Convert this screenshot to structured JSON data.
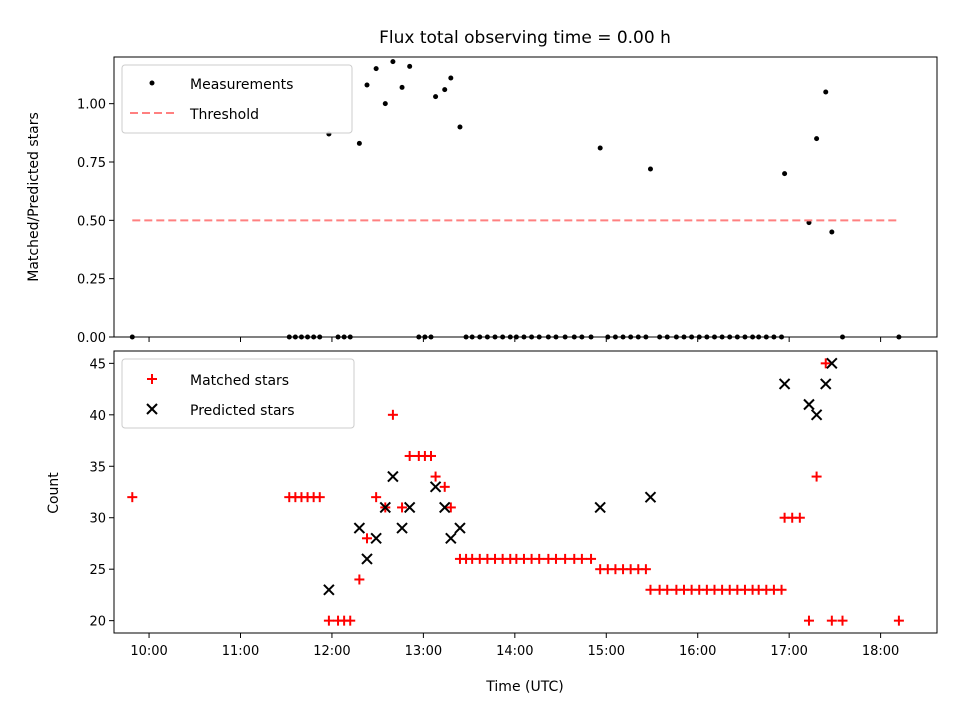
{
  "chart_data": [
    {
      "type": "scatter",
      "title": "Flux total observing time = 0.00 h",
      "xlabel": "",
      "ylabel": "Matched/Predicted stars",
      "xlim": [
        "09:37",
        "18:37"
      ],
      "ylim": [
        0,
        1.2
      ],
      "yticks": [
        "0.00",
        "0.25",
        "0.50",
        "0.75",
        "1.00"
      ],
      "grid": false,
      "legend": "top-left",
      "series": [
        {
          "name": "Measurements",
          "marker": "dot",
          "color": "#000000",
          "points": [
            [
              "09:49",
              0
            ],
            [
              "11:32",
              0
            ],
            [
              "11:36",
              0
            ],
            [
              "11:40",
              0
            ],
            [
              "11:44",
              0
            ],
            [
              "11:48",
              0
            ],
            [
              "11:52",
              0
            ],
            [
              "11:58",
              0.87
            ],
            [
              "12:04",
              0
            ],
            [
              "12:08",
              0
            ],
            [
              "12:12",
              0
            ],
            [
              "12:18",
              0.83
            ],
            [
              "12:23",
              1.08
            ],
            [
              "12:29",
              1.15
            ],
            [
              "12:35",
              1.0
            ],
            [
              "12:40",
              1.18
            ],
            [
              "12:46",
              1.07
            ],
            [
              "12:51",
              1.16
            ],
            [
              "12:57",
              0
            ],
            [
              "13:01",
              0
            ],
            [
              "13:05",
              0
            ],
            [
              "13:08",
              1.03
            ],
            [
              "13:14",
              1.06
            ],
            [
              "13:18",
              1.11
            ],
            [
              "13:24",
              0.9
            ],
            [
              "13:28",
              0
            ],
            [
              "13:32",
              0
            ],
            [
              "13:37",
              0
            ],
            [
              "13:42",
              0
            ],
            [
              "13:47",
              0
            ],
            [
              "13:52",
              0
            ],
            [
              "13:57",
              0
            ],
            [
              "14:01",
              0
            ],
            [
              "14:06",
              0
            ],
            [
              "14:11",
              0
            ],
            [
              "14:16",
              0
            ],
            [
              "14:22",
              0
            ],
            [
              "14:27",
              0
            ],
            [
              "14:33",
              0
            ],
            [
              "14:39",
              0
            ],
            [
              "14:44",
              0
            ],
            [
              "14:50",
              0
            ],
            [
              "14:56",
              0.81
            ],
            [
              "15:01",
              0
            ],
            [
              "15:06",
              0
            ],
            [
              "15:11",
              0
            ],
            [
              "15:16",
              0
            ],
            [
              "15:21",
              0
            ],
            [
              "15:26",
              0
            ],
            [
              "15:29",
              0.72
            ],
            [
              "15:35",
              0
            ],
            [
              "15:40",
              0
            ],
            [
              "15:46",
              0
            ],
            [
              "15:51",
              0
            ],
            [
              "15:56",
              0
            ],
            [
              "16:01",
              0
            ],
            [
              "16:06",
              0
            ],
            [
              "16:11",
              0
            ],
            [
              "16:16",
              0
            ],
            [
              "16:21",
              0
            ],
            [
              "16:26",
              0
            ],
            [
              "16:31",
              0
            ],
            [
              "16:36",
              0
            ],
            [
              "16:40",
              0
            ],
            [
              "16:45",
              0
            ],
            [
              "16:50",
              0
            ],
            [
              "16:55",
              0
            ],
            [
              "16:57",
              0.7
            ],
            [
              "17:13",
              0.49
            ],
            [
              "17:18",
              0.85
            ],
            [
              "17:24",
              1.05
            ],
            [
              "17:28",
              0.45
            ],
            [
              "17:35",
              0
            ],
            [
              "18:12",
              0
            ]
          ]
        },
        {
          "name": "Threshold",
          "marker": "dashed-line",
          "color": "#ff8080",
          "points": [
            [
              "09:49",
              0.5
            ],
            [
              "18:12",
              0.5
            ]
          ]
        }
      ]
    },
    {
      "type": "scatter",
      "title": "",
      "xlabel": "Time (UTC)",
      "ylabel": "Count",
      "xlim": [
        "09:37",
        "18:37"
      ],
      "ylim": [
        18.8,
        46.2
      ],
      "xticks": [
        "10:00",
        "11:00",
        "12:00",
        "13:00",
        "14:00",
        "15:00",
        "16:00",
        "17:00",
        "18:00"
      ],
      "yticks": [
        "20",
        "25",
        "30",
        "35",
        "40",
        "45"
      ],
      "grid": false,
      "legend": "top-left",
      "series": [
        {
          "name": "Matched stars",
          "marker": "plus",
          "color": "#ff0000",
          "points": [
            [
              "09:49",
              32
            ],
            [
              "11:32",
              32
            ],
            [
              "11:36",
              32
            ],
            [
              "11:40",
              32
            ],
            [
              "11:44",
              32
            ],
            [
              "11:48",
              32
            ],
            [
              "11:52",
              32
            ],
            [
              "11:58",
              20
            ],
            [
              "12:04",
              20
            ],
            [
              "12:08",
              20
            ],
            [
              "12:12",
              20
            ],
            [
              "12:18",
              24
            ],
            [
              "12:23",
              28
            ],
            [
              "12:29",
              32
            ],
            [
              "12:35",
              31
            ],
            [
              "12:40",
              40
            ],
            [
              "12:46",
              31
            ],
            [
              "12:51",
              36
            ],
            [
              "12:57",
              36
            ],
            [
              "13:01",
              36
            ],
            [
              "13:05",
              36
            ],
            [
              "13:08",
              34
            ],
            [
              "13:14",
              33
            ],
            [
              "13:18",
              31
            ],
            [
              "13:24",
              26
            ],
            [
              "13:28",
              26
            ],
            [
              "13:32",
              26
            ],
            [
              "13:37",
              26
            ],
            [
              "13:42",
              26
            ],
            [
              "13:47",
              26
            ],
            [
              "13:52",
              26
            ],
            [
              "13:57",
              26
            ],
            [
              "14:01",
              26
            ],
            [
              "14:06",
              26
            ],
            [
              "14:11",
              26
            ],
            [
              "14:16",
              26
            ],
            [
              "14:22",
              26
            ],
            [
              "14:27",
              26
            ],
            [
              "14:33",
              26
            ],
            [
              "14:39",
              26
            ],
            [
              "14:44",
              26
            ],
            [
              "14:50",
              26
            ],
            [
              "14:56",
              25
            ],
            [
              "15:01",
              25
            ],
            [
              "15:06",
              25
            ],
            [
              "15:11",
              25
            ],
            [
              "15:16",
              25
            ],
            [
              "15:21",
              25
            ],
            [
              "15:26",
              25
            ],
            [
              "15:29",
              23
            ],
            [
              "15:35",
              23
            ],
            [
              "15:40",
              23
            ],
            [
              "15:46",
              23
            ],
            [
              "15:51",
              23
            ],
            [
              "15:56",
              23
            ],
            [
              "16:01",
              23
            ],
            [
              "16:06",
              23
            ],
            [
              "16:11",
              23
            ],
            [
              "16:16",
              23
            ],
            [
              "16:21",
              23
            ],
            [
              "16:26",
              23
            ],
            [
              "16:31",
              23
            ],
            [
              "16:36",
              23
            ],
            [
              "16:40",
              23
            ],
            [
              "16:45",
              23
            ],
            [
              "16:50",
              23
            ],
            [
              "16:55",
              23
            ],
            [
              "16:57",
              30
            ],
            [
              "17:02",
              30
            ],
            [
              "17:07",
              30
            ],
            [
              "17:13",
              20
            ],
            [
              "17:18",
              34
            ],
            [
              "17:24",
              45
            ],
            [
              "17:28",
              20
            ],
            [
              "17:35",
              20
            ],
            [
              "18:12",
              20
            ]
          ]
        },
        {
          "name": "Predicted stars",
          "marker": "x",
          "color": "#000000",
          "points": [
            [
              "11:58",
              23
            ],
            [
              "12:18",
              29
            ],
            [
              "12:23",
              26
            ],
            [
              "12:29",
              28
            ],
            [
              "12:35",
              31
            ],
            [
              "12:40",
              34
            ],
            [
              "12:46",
              29
            ],
            [
              "12:51",
              31
            ],
            [
              "13:08",
              33
            ],
            [
              "13:14",
              31
            ],
            [
              "13:18",
              28
            ],
            [
              "13:24",
              29
            ],
            [
              "14:56",
              31
            ],
            [
              "15:29",
              32
            ],
            [
              "16:57",
              43
            ],
            [
              "17:13",
              41
            ],
            [
              "17:18",
              40
            ],
            [
              "17:24",
              43
            ],
            [
              "17:28",
              45
            ]
          ]
        }
      ]
    }
  ]
}
